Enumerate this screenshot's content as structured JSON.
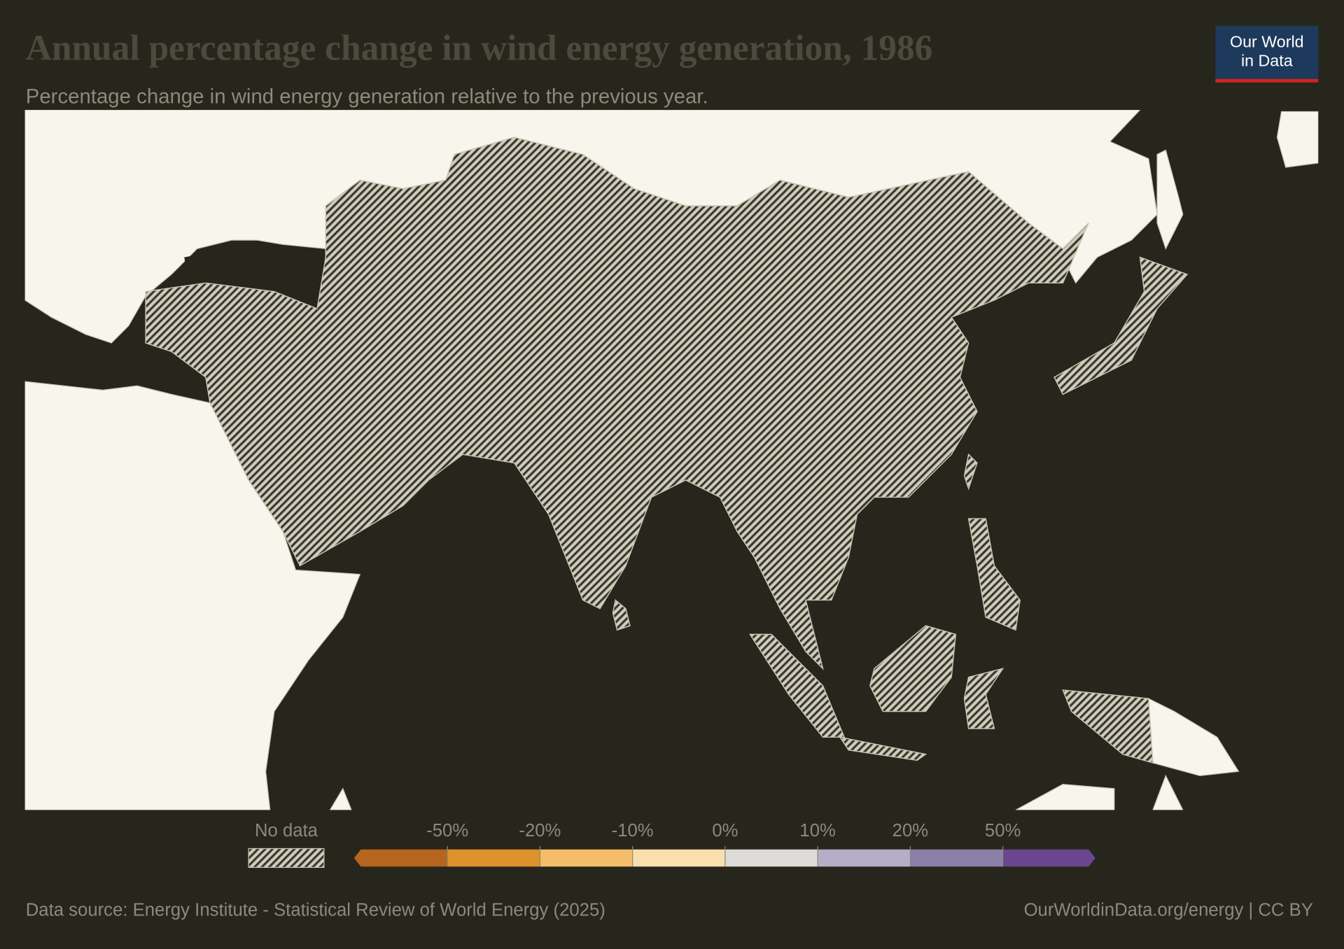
{
  "header": {
    "title": "Annual percentage change in wind energy generation, 1986",
    "subtitle": "Percentage change in wind energy generation relative to the previous year."
  },
  "logo": {
    "line1": "Our World",
    "line2": "in Data"
  },
  "legend": {
    "no_data": "No data",
    "ticks": [
      "-50%",
      "-20%",
      "-10%",
      "0%",
      "10%",
      "20%",
      "50%"
    ],
    "colors": [
      "#b5651d",
      "#de922b",
      "#f5bc6a",
      "#f9dfae",
      "#dcdbd9",
      "#b6aec8",
      "#8c7faa",
      "#6a4590"
    ]
  },
  "footer": {
    "source": "Data source: Energy Institute - Statistical Review of World Energy (2025)",
    "url": "OurWorldinData.org/energy | CC BY"
  }
}
